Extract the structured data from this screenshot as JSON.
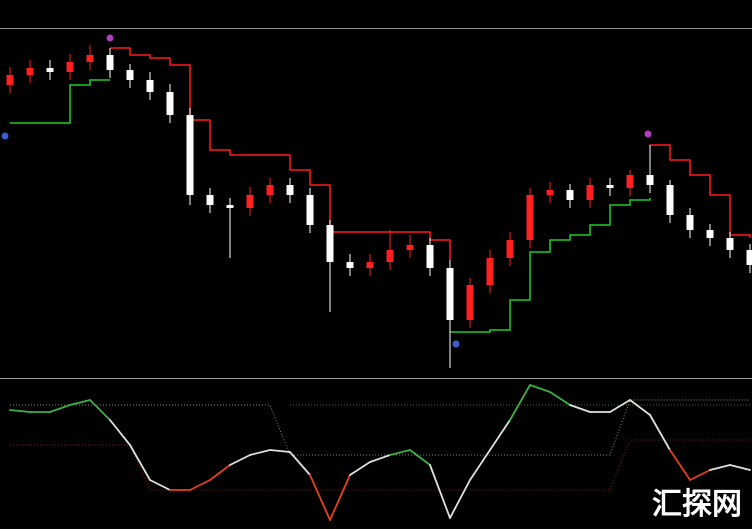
{
  "chart_data": [
    {
      "type": "candlestick",
      "open": [
        285,
        295,
        302,
        298,
        308,
        315,
        300,
        290,
        278,
        255,
        175,
        165,
        162,
        175,
        185,
        175,
        145,
        108,
        102,
        108,
        120,
        125,
        102,
        50,
        85,
        112,
        130,
        175,
        180,
        170,
        185,
        182,
        195,
        185,
        155,
        140,
        132,
        120
      ],
      "close": [
        295,
        302,
        298,
        308,
        315,
        300,
        290,
        278,
        255,
        175,
        165,
        162,
        175,
        185,
        175,
        145,
        108,
        102,
        108,
        120,
        125,
        102,
        50,
        85,
        112,
        130,
        175,
        180,
        170,
        185,
        182,
        195,
        185,
        155,
        140,
        132,
        120,
        105
      ],
      "high": [
        303,
        310,
        310,
        316,
        325,
        322,
        306,
        298,
        286,
        262,
        182,
        172,
        183,
        192,
        192,
        182,
        150,
        116,
        116,
        140,
        135,
        132,
        110,
        92,
        120,
        138,
        182,
        188,
        186,
        192,
        192,
        200,
        225,
        190,
        162,
        146,
        138,
        126
      ],
      "low": [
        277,
        287,
        290,
        290,
        300,
        292,
        282,
        270,
        247,
        165,
        157,
        112,
        154,
        167,
        167,
        137,
        58,
        94,
        94,
        100,
        112,
        94,
        2,
        42,
        77,
        104,
        122,
        167,
        162,
        162,
        174,
        174,
        177,
        147,
        132,
        124,
        112,
        97
      ],
      "up_color": "#ff2020",
      "down_color": "#ffffff",
      "series": [
        {
          "color": "#ff1a1a",
          "values": [
            null,
            null,
            null,
            null,
            null,
            322,
            315,
            312,
            305,
            250,
            220,
            215,
            215,
            215,
            200,
            185,
            138,
            138,
            138,
            138,
            138,
            130,
            110,
            null,
            null,
            null,
            null,
            null,
            null,
            null,
            null,
            null,
            225,
            210,
            195,
            175,
            135,
            132
          ]
        },
        {
          "color": "#22cc22",
          "values": [
            247,
            247,
            247,
            285,
            290,
            290,
            null,
            null,
            null,
            null,
            null,
            null,
            null,
            null,
            null,
            null,
            null,
            null,
            null,
            null,
            null,
            null,
            38,
            38,
            40,
            70,
            118,
            130,
            135,
            145,
            165,
            170,
            172,
            null,
            null,
            null,
            null,
            null
          ]
        }
      ],
      "ylim": [
        0,
        340
      ]
    },
    {
      "type": "oscillator",
      "values": [
        119,
        117,
        117,
        124,
        129,
        109,
        84,
        49,
        39,
        39,
        49,
        64,
        74,
        79,
        77,
        54,
        9,
        54,
        67,
        74,
        79,
        64,
        11,
        49,
        79,
        109,
        144,
        137,
        124,
        117,
        117,
        129,
        114,
        79,
        49,
        59,
        64,
        59
      ],
      "segment_colors": [
        "#3cb043",
        "#3cb043",
        "#3cb043",
        "#3cb043",
        "#3cb043",
        "#e0e0e0",
        "#e0e0e0",
        "#e0e0e0",
        "#e8401c",
        "#e8401c",
        "#e8401c",
        "#e0e0e0",
        "#e0e0e0",
        "#e0e0e0",
        "#e0e0e0",
        "#e8401c",
        "#e8401c",
        "#e0e0e0",
        "#e0e0e0",
        "#3cb043",
        "#3cb043",
        "#e0e0e0",
        "#e0e0e0",
        "#e0e0e0",
        "#e0e0e0",
        "#3cb043",
        "#3cb043",
        "#3cb043",
        "#e0e0e0",
        "#e0e0e0",
        "#e0e0e0",
        "#e0e0e0",
        "#e0e0e0",
        "#e8401c",
        "#e8401c",
        "#e0e0e0",
        "#e0e0e0"
      ],
      "series": [
        {
          "color": "#8a8a8a",
          "values": [
            124,
            124,
            124,
            124,
            124,
            124,
            124,
            124,
            124,
            124,
            124,
            124,
            124,
            124,
            74,
            74,
            74,
            74,
            74,
            74,
            74,
            74,
            74,
            74,
            74,
            74,
            74,
            74,
            74,
            74,
            74,
            129,
            129,
            129,
            129,
            129,
            129,
            129
          ]
        },
        {
          "color": "#8b1a10",
          "values": [
            84,
            84,
            84,
            84,
            84,
            84,
            84,
            39,
            39,
            39,
            39,
            39,
            39,
            39,
            39,
            39,
            39,
            39,
            39,
            39,
            39,
            39,
            39,
            39,
            39,
            39,
            39,
            39,
            39,
            39,
            39,
            89,
            89,
            89,
            89,
            89,
            89,
            89
          ]
        },
        {
          "color": "#2f7a2f",
          "values": [
            null,
            null,
            null,
            null,
            null,
            null,
            null,
            null,
            null,
            null,
            null,
            null,
            null,
            null,
            124,
            124,
            124,
            124,
            124,
            124,
            124,
            124,
            124,
            124,
            124,
            124,
            124,
            124,
            124,
            124,
            124,
            124,
            124,
            124,
            124,
            124,
            124,
            124
          ]
        }
      ],
      "ylim": [
        0,
        150
      ]
    },
    {
      "watermark": "汇探网"
    }
  ]
}
